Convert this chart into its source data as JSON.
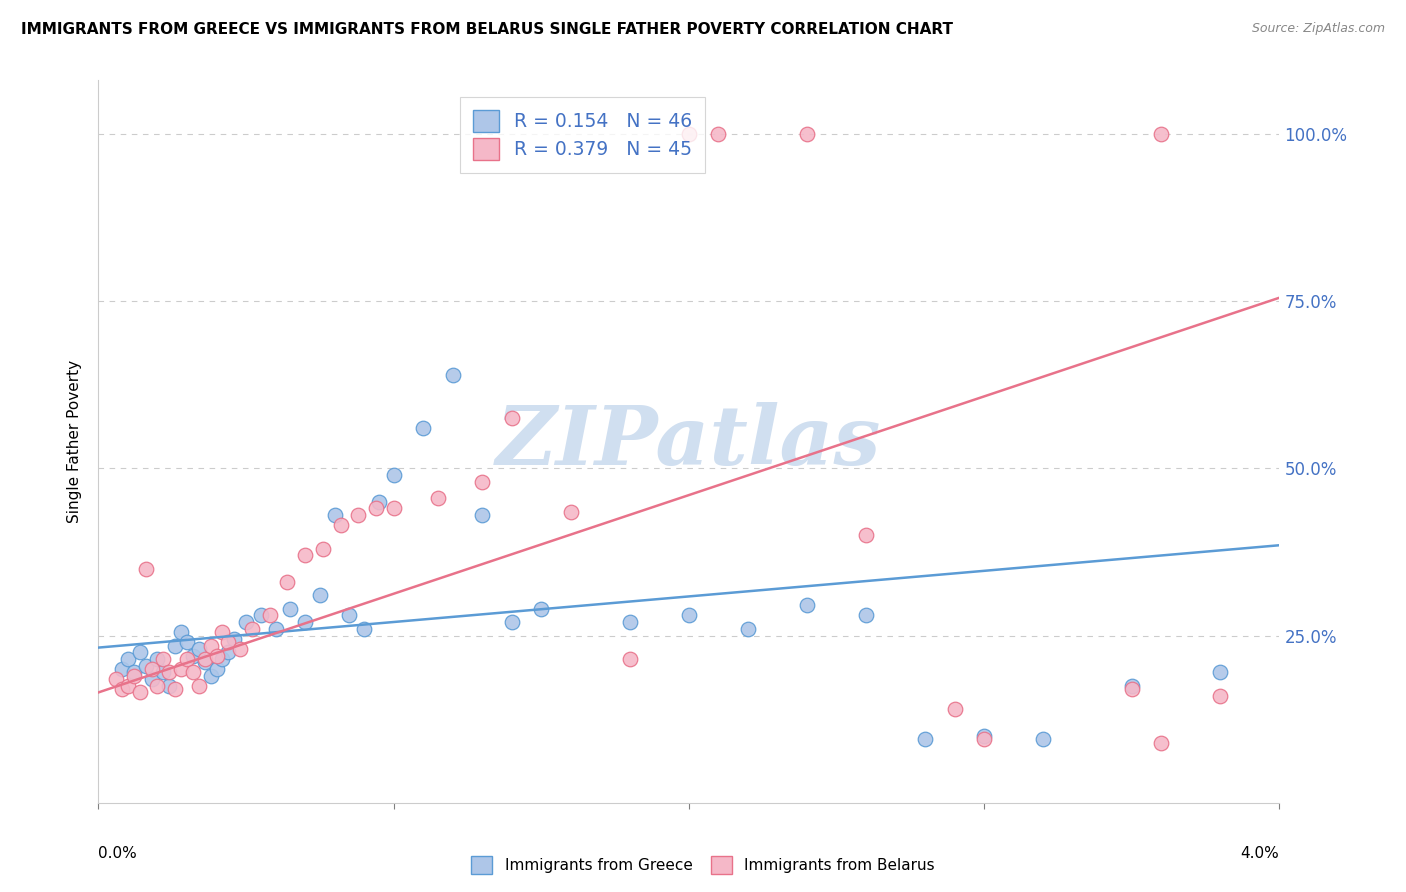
{
  "title": "IMMIGRANTS FROM GREECE VS IMMIGRANTS FROM BELARUS SINGLE FATHER POVERTY CORRELATION CHART",
  "source": "Source: ZipAtlas.com",
  "ylabel": "Single Father Poverty",
  "legend_blue_r": "R = 0.154",
  "legend_blue_n": "N = 46",
  "legend_pink_r": "R = 0.379",
  "legend_pink_n": "N = 45",
  "legend_label_blue": "Immigrants from Greece",
  "legend_label_pink": "Immigrants from Belarus",
  "blue_color": "#aec6e8",
  "pink_color": "#f5b8c8",
  "blue_edge_color": "#5b9bd5",
  "pink_edge_color": "#e8728a",
  "blue_line_color": "#5b9bd5",
  "pink_line_color": "#e8728a",
  "text_color": "#4472c4",
  "watermark_color": "#d0dff0",
  "xlim": [
    0.0,
    0.04
  ],
  "ylim": [
    0.0,
    1.08
  ],
  "ytick_positions": [
    0.25,
    0.5,
    0.75,
    1.0
  ],
  "ytick_labels": [
    "25.0%",
    "50.0%",
    "75.0%",
    "100.0%"
  ],
  "xtick_positions": [
    0.0,
    0.01,
    0.02,
    0.03,
    0.04
  ],
  "blue_line_x0": 0.0,
  "blue_line_x1": 0.04,
  "blue_line_y0": 0.232,
  "blue_line_y1": 0.385,
  "pink_line_x0": 0.0,
  "pink_line_x1": 0.04,
  "pink_line_y0": 0.165,
  "pink_line_y1": 0.755,
  "blue_x": [
    0.0008,
    0.001,
    0.0012,
    0.0014,
    0.0016,
    0.0018,
    0.002,
    0.0022,
    0.0024,
    0.0026,
    0.0028,
    0.003,
    0.0032,
    0.0034,
    0.0036,
    0.0038,
    0.004,
    0.0042,
    0.0044,
    0.0046,
    0.005,
    0.0055,
    0.006,
    0.0065,
    0.007,
    0.0075,
    0.008,
    0.0085,
    0.009,
    0.0095,
    0.01,
    0.011,
    0.012,
    0.013,
    0.014,
    0.015,
    0.018,
    0.02,
    0.022,
    0.024,
    0.026,
    0.028,
    0.03,
    0.032,
    0.035,
    0.038
  ],
  "blue_y": [
    0.2,
    0.215,
    0.195,
    0.225,
    0.205,
    0.185,
    0.215,
    0.195,
    0.175,
    0.235,
    0.255,
    0.24,
    0.22,
    0.23,
    0.21,
    0.19,
    0.2,
    0.215,
    0.225,
    0.245,
    0.27,
    0.28,
    0.26,
    0.29,
    0.27,
    0.31,
    0.43,
    0.28,
    0.26,
    0.45,
    0.49,
    0.56,
    0.64,
    0.43,
    0.27,
    0.29,
    0.27,
    0.28,
    0.26,
    0.295,
    0.28,
    0.095,
    0.1,
    0.095,
    0.175,
    0.195
  ],
  "pink_x": [
    0.0006,
    0.0008,
    0.001,
    0.0012,
    0.0014,
    0.0016,
    0.0018,
    0.002,
    0.0022,
    0.0024,
    0.0026,
    0.0028,
    0.003,
    0.0032,
    0.0034,
    0.0036,
    0.0038,
    0.004,
    0.0042,
    0.0044,
    0.0048,
    0.0052,
    0.0058,
    0.0064,
    0.007,
    0.0076,
    0.0082,
    0.0088,
    0.0094,
    0.01,
    0.0115,
    0.013,
    0.02,
    0.021,
    0.024,
    0.026,
    0.014,
    0.016,
    0.018,
    0.029,
    0.03,
    0.035,
    0.036,
    0.038,
    0.036
  ],
  "pink_y": [
    0.185,
    0.17,
    0.175,
    0.19,
    0.165,
    0.35,
    0.2,
    0.175,
    0.215,
    0.195,
    0.17,
    0.2,
    0.215,
    0.195,
    0.175,
    0.215,
    0.235,
    0.22,
    0.255,
    0.24,
    0.23,
    0.26,
    0.28,
    0.33,
    0.37,
    0.38,
    0.415,
    0.43,
    0.44,
    0.44,
    0.455,
    0.48,
    1.0,
    1.0,
    1.0,
    0.4,
    0.575,
    0.435,
    0.215,
    0.14,
    0.095,
    0.17,
    0.09,
    0.16,
    1.0
  ]
}
